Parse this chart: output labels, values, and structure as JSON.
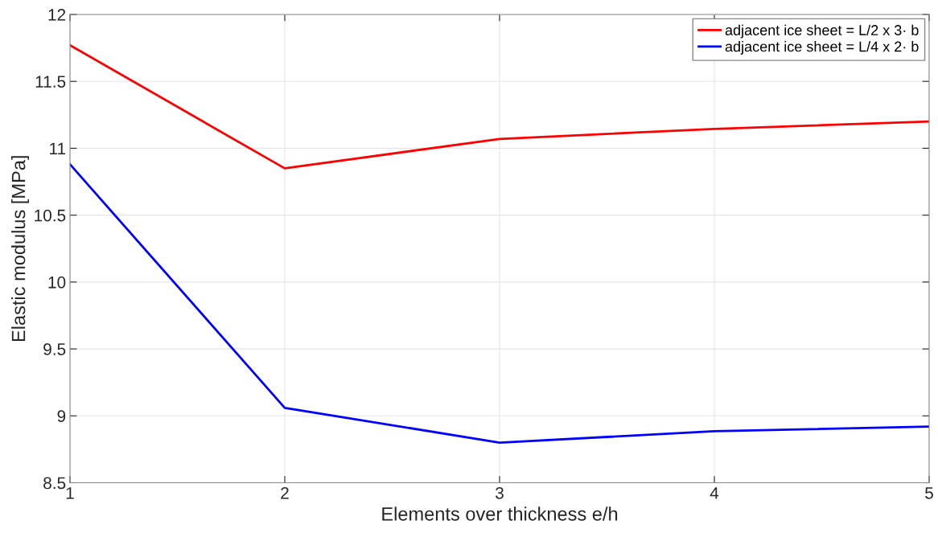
{
  "chart_data": {
    "type": "line",
    "xlabel": "Elements over thickness e/h",
    "ylabel": "Elastic modulus [MPa]",
    "x": [
      1,
      2,
      3,
      4,
      5
    ],
    "series": [
      {
        "name": "adjacent ice sheet = L/2 x 3· b",
        "color": "#ff0000",
        "values": [
          11.77,
          10.85,
          11.07,
          11.145,
          11.2
        ]
      },
      {
        "name": "adjacent ice sheet = L/4 x 2· b",
        "color": "#0000ff",
        "values": [
          10.88,
          9.06,
          8.8,
          8.885,
          8.92
        ]
      }
    ],
    "xlim": [
      1,
      5
    ],
    "xticks": [
      1,
      2,
      3,
      4,
      5
    ],
    "ylim": [
      8.5,
      12
    ],
    "yticks": [
      8.5,
      9,
      9.5,
      10,
      10.5,
      11,
      11.5,
      12
    ],
    "grid": true,
    "legend": "top right",
    "marker": "none",
    "line_style": "solid"
  }
}
